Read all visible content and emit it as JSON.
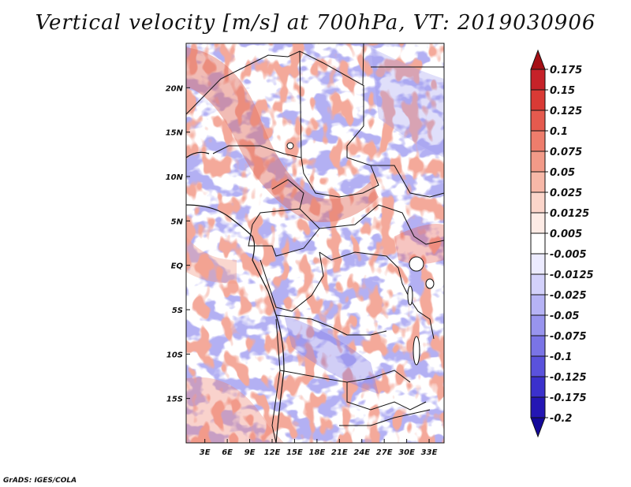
{
  "title": "Vertical velocity [m/s] at 700hPa, VT: 2019030906",
  "credit": "GrADS: IGES/COLA",
  "map": {
    "lat_labels": [
      "20N",
      "15N",
      "10N",
      "5N",
      "EQ",
      "5S",
      "10S",
      "15S"
    ],
    "lat_values": [
      20,
      15,
      10,
      5,
      0,
      -5,
      -10,
      -15
    ],
    "lon_labels": [
      "3E",
      "6E",
      "9E",
      "12E",
      "15E",
      "18E",
      "21E",
      "24E",
      "27E",
      "30E",
      "33E"
    ],
    "lon_values": [
      3,
      6,
      9,
      12,
      15,
      18,
      21,
      24,
      27,
      30,
      33
    ],
    "lon_range": [
      0.5,
      35
    ],
    "lat_range": [
      -20,
      25
    ]
  },
  "colorbar": {
    "labels": [
      "0.175",
      "0.15",
      "0.125",
      "0.1",
      "0.075",
      "0.05",
      "0.025",
      "0.0125",
      "0.005",
      "-0.005",
      "-0.0125",
      "-0.025",
      "-0.05",
      "-0.075",
      "-0.1",
      "-0.125",
      "-0.175",
      "-0.2"
    ],
    "colors": [
      "#a50f15",
      "#c62229",
      "#d93a35",
      "#e55a4e",
      "#ee7d6c",
      "#f29a88",
      "#f7b8a8",
      "#fbd5ca",
      "#fdebe5",
      "#ffffff",
      "#ecebff",
      "#d3d1fb",
      "#b6b3f5",
      "#9894ee",
      "#7a74e6",
      "#5a52dc",
      "#3b31cc",
      "#2416b4",
      "#14089a"
    ]
  }
}
